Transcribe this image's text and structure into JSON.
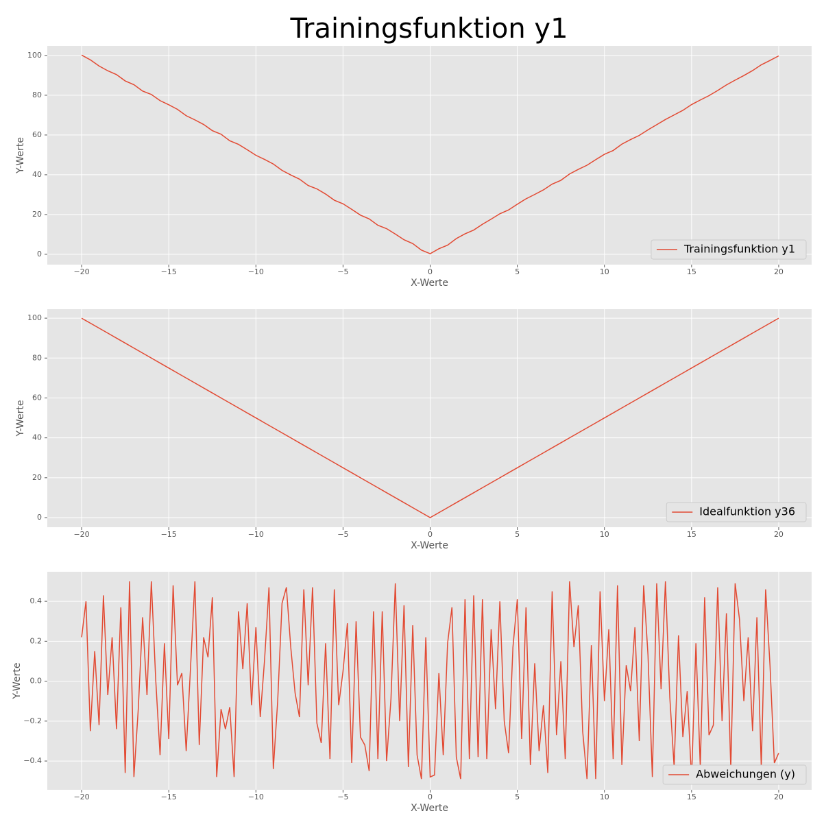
{
  "chart_data": [
    {
      "type": "line",
      "title": "Trainingsfunktion y1",
      "xlabel": "X-Werte",
      "ylabel": "Y-Werte",
      "grid": true,
      "legend": "lower right",
      "x": [
        -20,
        -19.5,
        -19,
        -18.5,
        -18,
        -17.5,
        -17,
        -16.5,
        -16,
        -15.5,
        -15,
        -14.5,
        -14,
        -13.5,
        -13,
        -12.5,
        -12,
        -11.5,
        -11,
        -10.5,
        -10,
        -9.5,
        -9,
        -8.5,
        -8,
        -7.5,
        -7,
        -6.5,
        -6,
        -5.5,
        -5,
        -4.5,
        -4,
        -3.5,
        -3,
        -2.5,
        -2,
        -1.5,
        -1,
        -0.5,
        0,
        0.5,
        1,
        1.5,
        2,
        2.5,
        3,
        3.5,
        4,
        4.5,
        5,
        5.5,
        6,
        6.5,
        7,
        7.5,
        8,
        8.5,
        9,
        9.5,
        10,
        10.5,
        11,
        11.5,
        12,
        12.5,
        13,
        13.5,
        14,
        14.5,
        15,
        15.5,
        16,
        16.5,
        17,
        17.5,
        18,
        18.5,
        19,
        19.5,
        20
      ],
      "series": [
        {
          "name": "Trainingsfunktion y1",
          "color": "#e24a33",
          "values": [
            100.2,
            97.8,
            94.7,
            92.3,
            90.4,
            87.2,
            85.3,
            82.1,
            80.4,
            77.3,
            75.2,
            72.9,
            69.7,
            67.6,
            65.3,
            62.2,
            60.4,
            57.1,
            55.3,
            52.6,
            49.8,
            47.7,
            45.4,
            42.2,
            39.9,
            37.8,
            34.6,
            32.9,
            30.3,
            27.2,
            25.4,
            22.6,
            19.7,
            17.8,
            14.6,
            12.9,
            10.2,
            7.3,
            5.4,
            2.1,
            0.3,
            2.8,
            4.6,
            7.9,
            10.3,
            12.2,
            15.1,
            17.7,
            20.4,
            22.3,
            25.2,
            27.9,
            30.1,
            32.4,
            35.3,
            37.2,
            40.4,
            42.7,
            44.8,
            47.6,
            50.3,
            52.2,
            55.4,
            57.7,
            59.8,
            62.6,
            65.2,
            67.8,
            70.1,
            72.4,
            75.3,
            77.6,
            79.8,
            82.4,
            85.2,
            87.6,
            89.9,
            92.4,
            95.3,
            97.5,
            99.8
          ]
        }
      ],
      "xlim": [
        -21.97,
        21.89
      ],
      "ylim": [
        -5.2,
        104.8
      ],
      "xticks": [
        {
          "value": -20,
          "label": "−20"
        },
        {
          "value": -15,
          "label": "−15"
        },
        {
          "value": -10,
          "label": "−10"
        },
        {
          "value": -5,
          "label": "−5"
        },
        0,
        5,
        10,
        15,
        20
      ],
      "yticks": [
        0,
        20,
        40,
        60,
        80,
        100
      ]
    },
    {
      "type": "line",
      "xlabel": "X-Werte",
      "ylabel": "Y-Werte",
      "grid": true,
      "legend": "lower right",
      "x": [
        -20,
        -19.5,
        -19,
        -18.5,
        -18,
        -17.5,
        -17,
        -16.5,
        -16,
        -15.5,
        -15,
        -14.5,
        -14,
        -13.5,
        -13,
        -12.5,
        -12,
        -11.5,
        -11,
        -10.5,
        -10,
        -9.5,
        -9,
        -8.5,
        -8,
        -7.5,
        -7,
        -6.5,
        -6,
        -5.5,
        -5,
        -4.5,
        -4,
        -3.5,
        -3,
        -2.5,
        -2,
        -1.5,
        -1,
        -0.5,
        0,
        0.5,
        1,
        1.5,
        2,
        2.5,
        3,
        3.5,
        4,
        4.5,
        5,
        5.5,
        6,
        6.5,
        7,
        7.5,
        8,
        8.5,
        9,
        9.5,
        10,
        10.5,
        11,
        11.5,
        12,
        12.5,
        13,
        13.5,
        14,
        14.5,
        15,
        15.5,
        16,
        16.5,
        17,
        17.5,
        18,
        18.5,
        19,
        19.5,
        20
      ],
      "series": [
        {
          "name": "Idealfunktion y36",
          "color": "#e24a33",
          "values": [
            100,
            97.5,
            95,
            92.5,
            90,
            87.5,
            85,
            82.5,
            80,
            77.5,
            75,
            72.5,
            70,
            67.5,
            65,
            62.5,
            60,
            57.5,
            55,
            52.5,
            50,
            47.5,
            45,
            42.5,
            40,
            37.5,
            35,
            32.5,
            30,
            27.5,
            25,
            22.5,
            20,
            17.5,
            15,
            12.5,
            10,
            7.5,
            5,
            2.5,
            0,
            2.5,
            5,
            7.5,
            10,
            12.5,
            15,
            17.5,
            20,
            22.5,
            25,
            27.5,
            30,
            32.5,
            35,
            37.5,
            40,
            42.5,
            45,
            47.5,
            50,
            52.5,
            55,
            57.5,
            60,
            62.5,
            65,
            67.5,
            70,
            72.5,
            75,
            77.5,
            80,
            82.5,
            85,
            87.5,
            90,
            92.5,
            95,
            97.5,
            100
          ]
        }
      ],
      "xlim": [
        -21.97,
        21.89
      ],
      "ylim": [
        -4.8,
        104.5
      ],
      "xticks": [
        {
          "value": -20,
          "label": "−20"
        },
        {
          "value": -15,
          "label": "−15"
        },
        {
          "value": -10,
          "label": "−10"
        },
        {
          "value": -5,
          "label": "−5"
        },
        0,
        5,
        10,
        15,
        20
      ],
      "yticks": [
        0,
        20,
        40,
        60,
        80,
        100
      ]
    },
    {
      "type": "line",
      "xlabel": "X-Werte",
      "ylabel": "Y-Werte",
      "grid": true,
      "legend": "lower right",
      "x": [
        -20,
        -19.75,
        -19.5,
        -19.25,
        -19,
        -18.75,
        -18.5,
        -18.25,
        -18,
        -17.75,
        -17.5,
        -17.25,
        -17,
        -16.75,
        -16.5,
        -16.25,
        -16,
        -15.75,
        -15.5,
        -15.25,
        -15,
        -14.75,
        -14.5,
        -14.25,
        -14,
        -13.75,
        -13.5,
        -13.25,
        -13,
        -12.75,
        -12.5,
        -12.25,
        -12,
        -11.75,
        -11.5,
        -11.25,
        -11,
        -10.75,
        -10.5,
        -10.25,
        -10,
        -9.75,
        -9.5,
        -9.25,
        -9,
        -8.75,
        -8.5,
        -8.25,
        -8,
        -7.75,
        -7.5,
        -7.25,
        -7,
        -6.75,
        -6.5,
        -6.25,
        -6,
        -5.75,
        -5.5,
        -5.25,
        -5,
        -4.75,
        -4.5,
        -4.25,
        -4,
        -3.75,
        -3.5,
        -3.25,
        -3,
        -2.75,
        -2.5,
        -2.25,
        -2,
        -1.75,
        -1.5,
        -1.25,
        -1,
        -0.75,
        -0.5,
        -0.25,
        0,
        0.25,
        0.5,
        0.75,
        1,
        1.25,
        1.5,
        1.75,
        2,
        2.25,
        2.5,
        2.75,
        3,
        3.25,
        3.5,
        3.75,
        4,
        4.25,
        4.5,
        4.75,
        5,
        5.25,
        5.5,
        5.75,
        6,
        6.25,
        6.5,
        6.75,
        7,
        7.25,
        7.5,
        7.75,
        8,
        8.25,
        8.5,
        8.75,
        9,
        9.25,
        9.5,
        9.75,
        10,
        10.25,
        10.5,
        10.75,
        11,
        11.25,
        11.5,
        11.75,
        12,
        12.25,
        12.5,
        12.75,
        13,
        13.25,
        13.5,
        13.75,
        14,
        14.25,
        14.5,
        14.75,
        15,
        15.25,
        15.5,
        15.75,
        16,
        16.25,
        16.5,
        16.75,
        17,
        17.25,
        17.5,
        17.75,
        18,
        18.25,
        18.5,
        18.75,
        19,
        19.25,
        19.5,
        19.75,
        20
      ],
      "series": [
        {
          "name": "Abweichungen (y)",
          "color": "#e24a33",
          "values": [
            0.22,
            0.4,
            -0.25,
            0.15,
            -0.22,
            0.43,
            -0.07,
            0.22,
            -0.24,
            0.37,
            -0.46,
            0.5,
            -0.48,
            -0.14,
            0.32,
            -0.07,
            0.5,
            0.01,
            -0.37,
            0.19,
            -0.29,
            0.48,
            -0.02,
            0.04,
            -0.35,
            0.07,
            0.5,
            -0.32,
            0.22,
            0.12,
            0.42,
            -0.48,
            -0.14,
            -0.24,
            -0.13,
            -0.48,
            0.35,
            0.06,
            0.39,
            -0.12,
            0.27,
            -0.18,
            0.11,
            0.47,
            -0.44,
            -0.1,
            0.39,
            0.47,
            0.17,
            -0.06,
            -0.18,
            0.46,
            -0.02,
            0.47,
            -0.21,
            -0.31,
            0.19,
            -0.39,
            0.46,
            -0.12,
            0.05,
            0.29,
            -0.41,
            0.3,
            -0.28,
            -0.32,
            -0.45,
            0.35,
            -0.39,
            0.35,
            -0.4,
            -0.09,
            0.49,
            -0.2,
            0.38,
            -0.43,
            0.28,
            -0.37,
            -0.49,
            0.22,
            -0.48,
            -0.47,
            0.04,
            -0.37,
            0.19,
            0.37,
            -0.38,
            -0.49,
            0.41,
            -0.39,
            0.43,
            -0.38,
            0.41,
            -0.39,
            0.26,
            -0.14,
            0.4,
            -0.2,
            -0.36,
            0.17,
            0.41,
            -0.29,
            0.37,
            -0.42,
            0.09,
            -0.35,
            -0.12,
            -0.46,
            0.45,
            -0.27,
            0.1,
            -0.39,
            0.5,
            0.17,
            0.38,
            -0.25,
            -0.49,
            0.18,
            -0.49,
            0.45,
            -0.1,
            0.26,
            -0.39,
            0.48,
            -0.42,
            0.08,
            -0.05,
            0.27,
            -0.3,
            0.48,
            0.13,
            -0.48,
            0.49,
            -0.04,
            0.5,
            -0.08,
            -0.43,
            0.23,
            -0.28,
            -0.05,
            -0.49,
            0.19,
            -0.43,
            0.42,
            -0.27,
            -0.22,
            0.47,
            -0.2,
            0.34,
            -0.44,
            0.49,
            0.31,
            -0.1,
            0.22,
            -0.25,
            0.32,
            -0.43,
            0.46,
            0.08,
            -0.41,
            -0.36
          ]
        }
      ],
      "xlim": [
        -21.97,
        21.89
      ],
      "ylim": [
        -0.544,
        0.548
      ],
      "xticks": [
        {
          "value": -20,
          "label": "−20"
        },
        {
          "value": -15,
          "label": "−15"
        },
        {
          "value": -10,
          "label": "−10"
        },
        {
          "value": -5,
          "label": "−5"
        },
        0,
        5,
        10,
        15,
        20
      ],
      "yticks": [
        {
          "value": -0.4,
          "label": "−0.4"
        },
        {
          "value": -0.2,
          "label": "−0.2"
        },
        {
          "value": 0,
          "label": "0.0"
        },
        0.2,
        0.4
      ]
    }
  ]
}
